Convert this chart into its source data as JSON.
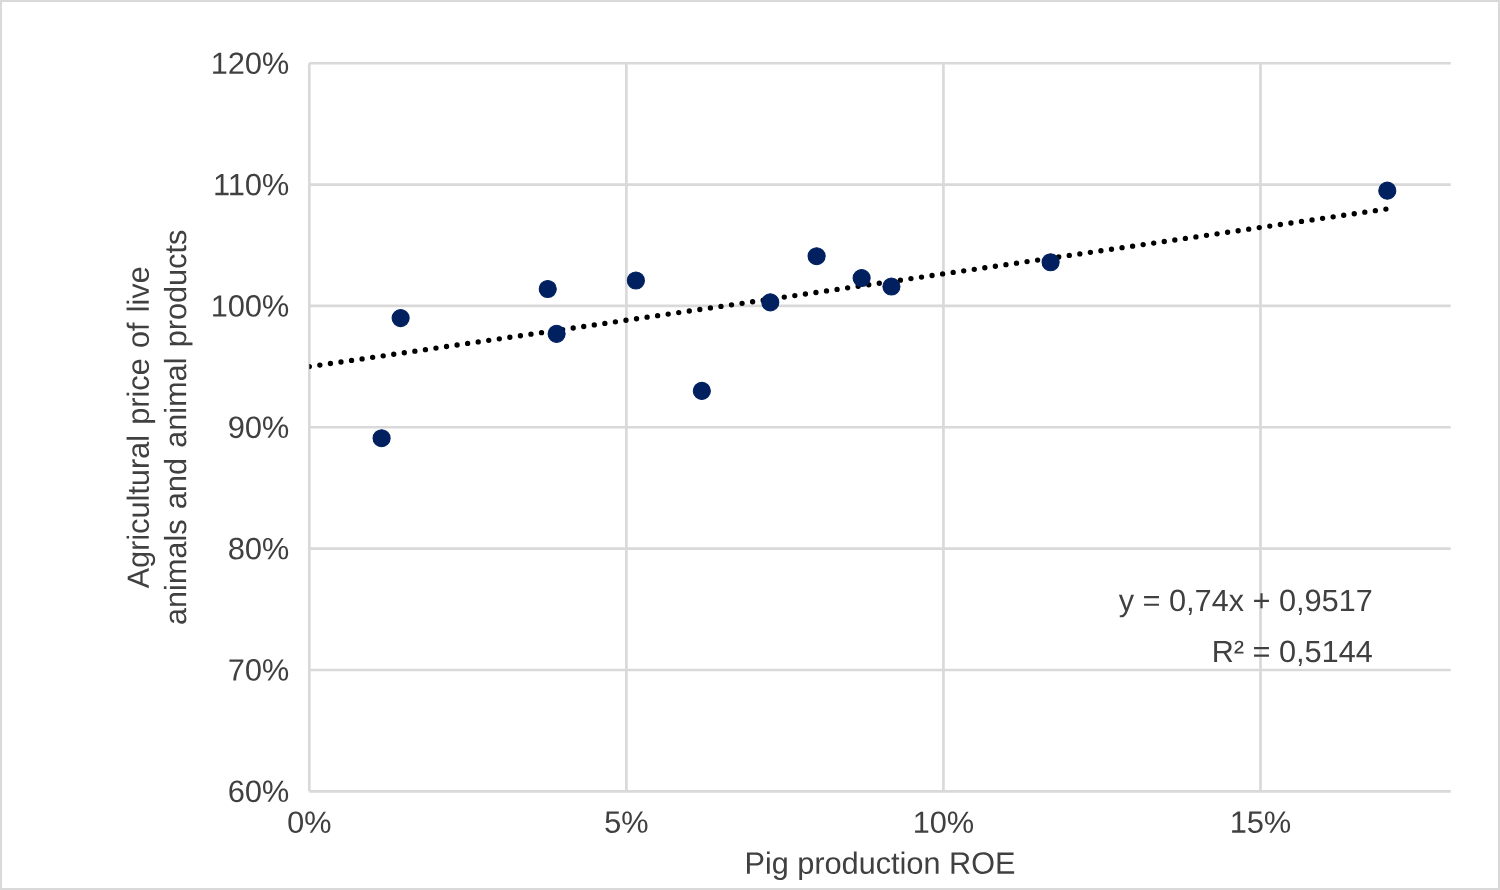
{
  "chart_data": {
    "type": "scatter",
    "xlabel": "Pig production ROE",
    "ylabel": "Agricultural price of live animals and animal products",
    "annotations": [
      "y = 0,74x + 0,9517",
      "R² = 0,5144"
    ],
    "series": [
      {
        "color": "#002060",
        "marker": "circle",
        "x": [
          0.0114,
          0.0144,
          0.0376,
          0.039,
          0.0515,
          0.0619,
          0.0727,
          0.08,
          0.0871,
          0.0918,
          0.1169,
          0.17
        ],
        "values": [
          0.891,
          0.99,
          1.014,
          0.977,
          1.021,
          0.93,
          1.003,
          1.041,
          1.023,
          1.016,
          1.036,
          1.095
        ]
      },
      {
        "type": "line",
        "color": "#000000",
        "line_style": "dotted",
        "marker": "none",
        "x": [
          0,
          0.17
        ],
        "values": [
          0.95,
          1.08
        ]
      }
    ],
    "xlim": [
      0,
      0.18
    ],
    "xticks": [
      {
        "value": 0,
        "label": "0%"
      },
      {
        "value": 0.05,
        "label": "5%"
      },
      {
        "value": 0.1,
        "label": "10%"
      },
      {
        "value": 0.15,
        "label": "15%"
      }
    ],
    "ylim": [
      0.6,
      1.2
    ],
    "yticks": [
      {
        "value": 0.6,
        "label": "60%"
      },
      {
        "value": 0.7,
        "label": "70%"
      },
      {
        "value": 0.8,
        "label": "80%"
      },
      {
        "value": 0.9,
        "label": "90%"
      },
      {
        "value": 1.0,
        "label": "100%"
      },
      {
        "value": 1.1,
        "label": "110%"
      },
      {
        "value": 1.2,
        "label": "120%"
      }
    ],
    "grid": true
  }
}
